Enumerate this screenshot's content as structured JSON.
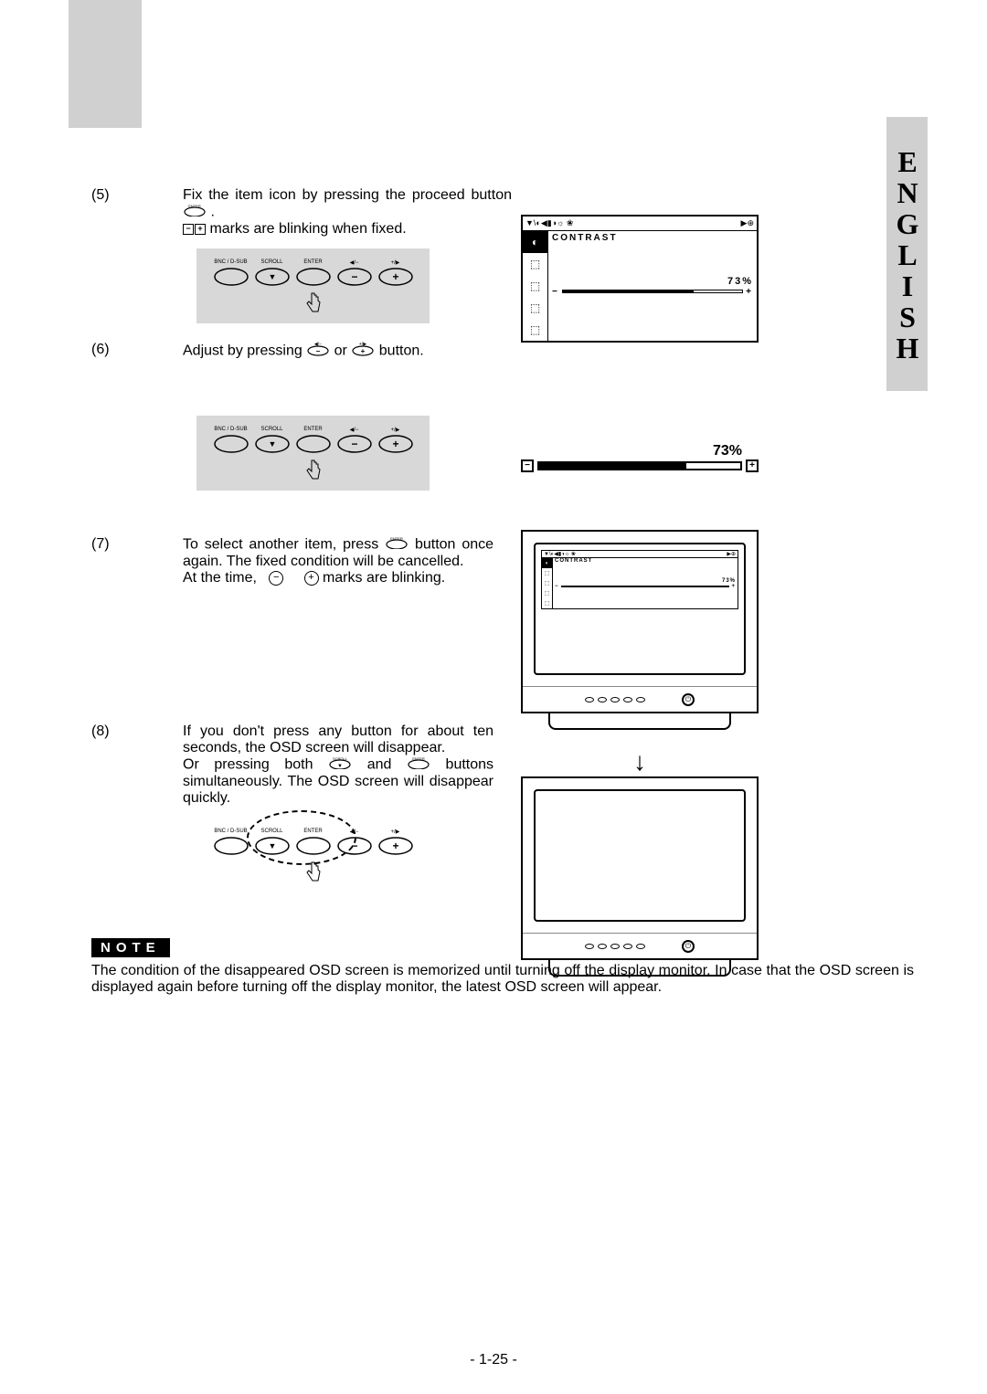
{
  "language_tab": "ENGLISH",
  "steps": {
    "s5": {
      "num": "(5)",
      "line1": "Fix the item icon by pressing the proceed button",
      "line2": "marks are blinking when fixed."
    },
    "s6": {
      "num": "(6)",
      "text_a": "Adjust by pressing",
      "text_b": "or",
      "text_c": "button."
    },
    "s7": {
      "num": "(7)",
      "text_a": "To select another item, press",
      "text_b": "button once again.  The fixed condition will be cancelled.",
      "text_c": "At the time,",
      "text_d": "marks are blinking."
    },
    "s8": {
      "num": "(8)",
      "text_a": "If you don't press any button for about ten seconds, the OSD screen will disappear.",
      "text_b": "Or pressing both",
      "text_c": "and",
      "text_d": "buttons simultaneously. The OSD screen will disappear quickly."
    }
  },
  "button_labels": {
    "bnc": "BNC / D-SUB",
    "scroll": "SCROLL",
    "enter": "ENTER",
    "minus": "◀/−",
    "plus": "+/▶",
    "enter_tiny": "ENTER",
    "scroll_tiny": "SCROLL"
  },
  "osd": {
    "title": "CONTRAST",
    "percent": "73%",
    "fill_pct": 73,
    "header_left": "▼\\◐◀▮◑☼ ❀",
    "header_right": "▶⊕"
  },
  "slider": {
    "percent": "73%",
    "fill_pct": 73
  },
  "mini_osd": {
    "title": "CONTRAST",
    "percent": "73%",
    "fill_pct": 73
  },
  "note": {
    "label": "NOTE",
    "text": "The condition of the disappeared OSD screen is memorized until turning off the display monitor.  In case that the OSD screen is displayed again before turning off the display monitor, the latest OSD screen will appear."
  },
  "page_number": "- 1-25 -",
  "colors": {
    "gray_block": "#d0d0d0",
    "panel_bg": "#d8d8d8",
    "black": "#000000",
    "white": "#ffffff"
  }
}
